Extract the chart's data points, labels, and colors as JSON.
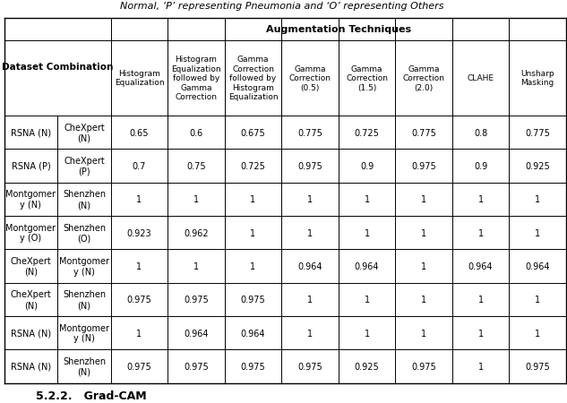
{
  "title": "Normal, ‘P’ representing Pneumonia and ‘O’ representing Others",
  "header_aug": "Augmentation Techniques",
  "col_headers": [
    "Histogram\nEqualization",
    "Histogram\nEqualization\nfollowed by\nGamma\nCorrection",
    "Gamma\nCorrection\nfollowed by\nHistogram\nEqualization",
    "Gamma\nCorrection\n(0.5)",
    "Gamma\nCorrection\n(1.5)",
    "Gamma\nCorrection\n(2.0)",
    "CLAHE",
    "Unsharp\nMasking"
  ],
  "row_labels_col1": [
    "RSNA (N)",
    "RSNA (P)",
    "Montgomer\ny (N)",
    "Montgomer\ny (O)",
    "CheXpert\n(N)",
    "CheXpert\n(N)",
    "RSNA (N)",
    "RSNA (N)"
  ],
  "row_labels_col2": [
    "CheXpert\n(N)",
    "CheXpert\n(P)",
    "Shenzhen\n(N)",
    "Shenzhen\n(O)",
    "Montgomer\ny (N)",
    "Shenzhen\n(N)",
    "Montgomer\ny (N)",
    "Shenzhen\n(N)"
  ],
  "data": [
    [
      0.65,
      0.6,
      0.675,
      0.775,
      0.725,
      0.775,
      0.8,
      0.775
    ],
    [
      0.7,
      0.75,
      0.725,
      0.975,
      0.9,
      0.975,
      0.9,
      0.925
    ],
    [
      1,
      1,
      1,
      1,
      1,
      1,
      1,
      1
    ],
    [
      0.923,
      0.962,
      1,
      1,
      1,
      1,
      1,
      1
    ],
    [
      1,
      1,
      1,
      0.964,
      0.964,
      1,
      0.964,
      0.964
    ],
    [
      0.975,
      0.975,
      0.975,
      1,
      1,
      1,
      1,
      1
    ],
    [
      1,
      0.964,
      0.964,
      1,
      1,
      1,
      1,
      1
    ],
    [
      0.975,
      0.975,
      0.975,
      0.975,
      0.925,
      0.975,
      1,
      0.975
    ]
  ],
  "footer": "5.2.2.   Grad-CAM",
  "bg_color": "#ffffff",
  "text_color": "#000000",
  "line_color": "#000000",
  "title_fontsize": 8,
  "header_fontsize": 8,
  "col_header_fontsize": 6.5,
  "cell_fontsize": 7,
  "label_fontsize": 7,
  "footer_fontsize": 9
}
